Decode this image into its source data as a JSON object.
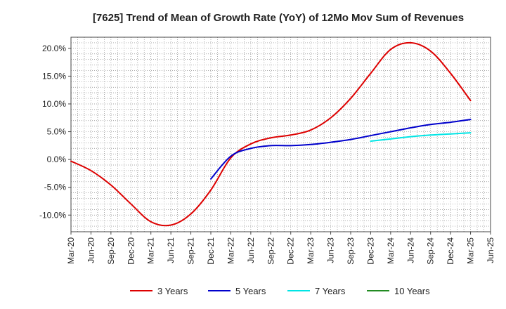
{
  "chart_data": {
    "type": "line",
    "title": "[7625]  Trend of Mean of Growth Rate (YoY) of 12Mo Mov Sum of Revenues",
    "xlabel": "",
    "ylabel": "",
    "ylim": [
      -13,
      22
    ],
    "y_ticks": [
      20,
      15,
      10,
      5,
      0,
      -5,
      -10
    ],
    "y_tick_labels": [
      "20.0%",
      "15.0%",
      "10.0%",
      "5.0%",
      "0.0%",
      "-5.0%",
      "-10.0%"
    ],
    "x_tick_labels": [
      "Mar-20",
      "Jun-20",
      "Sep-20",
      "Dec-20",
      "Mar-21",
      "Jun-21",
      "Sep-21",
      "Dec-21",
      "Mar-22",
      "Jun-22",
      "Sep-22",
      "Dec-22",
      "Mar-23",
      "Jun-23",
      "Sep-23",
      "Dec-23",
      "Mar-24",
      "Jun-24",
      "Sep-24",
      "Dec-24",
      "Mar-25",
      "Jun-25"
    ],
    "grid": true,
    "legend_position": "bottom",
    "series": [
      {
        "name": "3 Years",
        "color": "#dd0000",
        "points": [
          [
            0,
            -0.3
          ],
          [
            1,
            -2.0
          ],
          [
            2,
            -4.6
          ],
          [
            3,
            -8.0
          ],
          [
            4,
            -11.2
          ],
          [
            5,
            -11.8
          ],
          [
            6,
            -9.8
          ],
          [
            7,
            -5.5
          ],
          [
            8,
            0.3
          ],
          [
            9,
            2.8
          ],
          [
            10,
            3.9
          ],
          [
            11,
            4.4
          ],
          [
            12,
            5.3
          ],
          [
            13,
            7.5
          ],
          [
            14,
            11.0
          ],
          [
            15,
            15.5
          ],
          [
            16,
            19.8
          ],
          [
            17,
            21.0
          ],
          [
            18,
            19.5
          ],
          [
            19,
            15.5
          ],
          [
            20,
            10.6
          ]
        ]
      },
      {
        "name": "5 Years",
        "color": "#0000cc",
        "points": [
          [
            7,
            -3.5
          ],
          [
            8,
            0.6
          ],
          [
            9,
            2.0
          ],
          [
            10,
            2.5
          ],
          [
            11,
            2.5
          ],
          [
            12,
            2.7
          ],
          [
            13,
            3.1
          ],
          [
            14,
            3.6
          ],
          [
            15,
            4.3
          ],
          [
            16,
            5.0
          ],
          [
            17,
            5.7
          ],
          [
            18,
            6.3
          ],
          [
            19,
            6.7
          ],
          [
            20,
            7.2
          ]
        ]
      },
      {
        "name": "7 Years",
        "color": "#00e5e5",
        "points": [
          [
            15,
            3.3
          ],
          [
            16,
            3.7
          ],
          [
            17,
            4.1
          ],
          [
            18,
            4.4
          ],
          [
            19,
            4.6
          ],
          [
            20,
            4.8
          ]
        ]
      },
      {
        "name": "10 Years",
        "color": "#228b22",
        "points": []
      }
    ]
  }
}
